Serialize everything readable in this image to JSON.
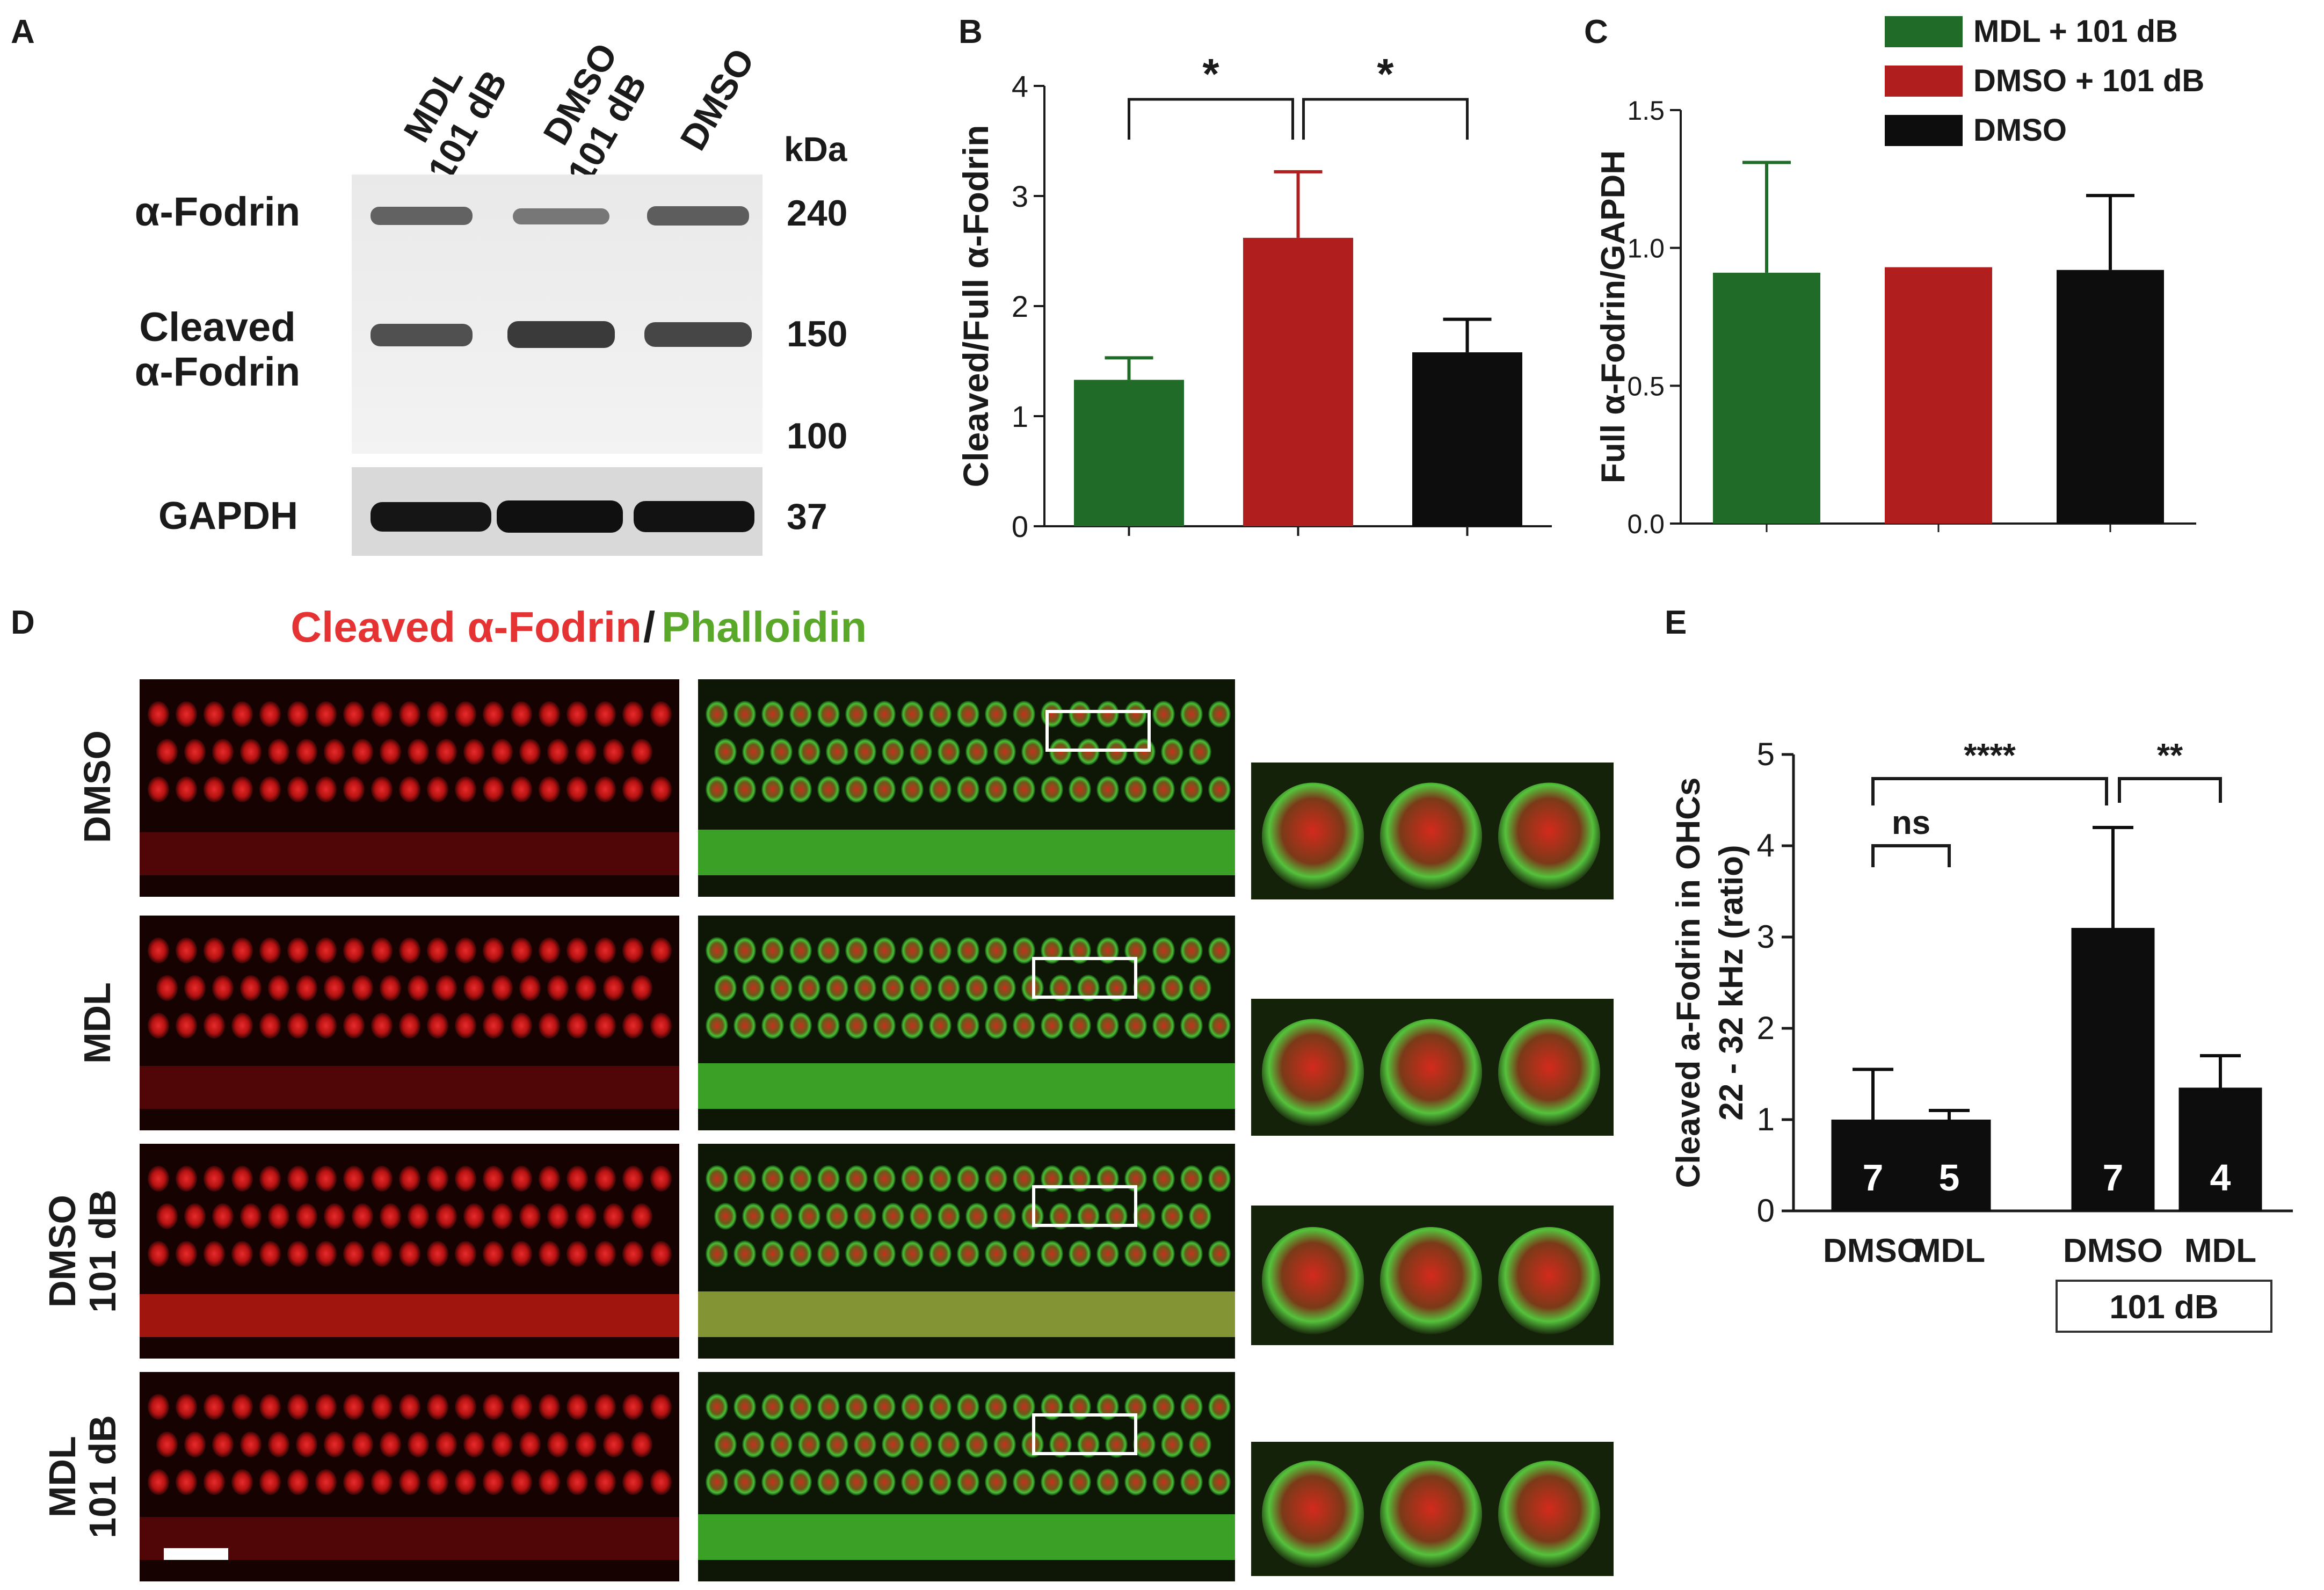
{
  "colors": {
    "green": "#1f6b27",
    "red": "#b01e1e",
    "black": "#0d0d0d",
    "title_red": "#e53232",
    "title_green": "#5aa82a",
    "micro_red": "#c21717",
    "micro_green": "#3fae2a"
  },
  "panels": {
    "A": "A",
    "B": "B",
    "C": "C",
    "D": "D",
    "E": "E"
  },
  "blot": {
    "lanes": [
      {
        "line1": "MDL",
        "line2": "101 dB"
      },
      {
        "line1": "DMSO",
        "line2": "101 dB"
      },
      {
        "line1": "DMSO",
        "line2": ""
      }
    ],
    "kda_label": "kDa",
    "band_labels": {
      "fodrin": "α-Fodrin",
      "cleaved_1": "Cleaved",
      "cleaved_2": "α-Fodrin",
      "gapdh": "GAPDH"
    },
    "markers": [
      "240",
      "150",
      "100",
      "37"
    ]
  },
  "chart_data": [
    {
      "panel": "B",
      "type": "bar",
      "categories": [
        "MDL + 101 dB",
        "DMSO + 101 dB",
        "DMSO"
      ],
      "values": [
        1.33,
        2.62,
        1.58
      ],
      "errors": [
        0.2,
        0.6,
        0.3
      ],
      "ylabel": "Cleaved/Full α-Fodrin",
      "ylim": [
        0,
        4
      ],
      "yticks": [
        "0",
        "1",
        "2",
        "3",
        "4"
      ],
      "significance": [
        {
          "from": 0,
          "to": 1,
          "label": "*"
        },
        {
          "from": 1,
          "to": 2,
          "label": "*"
        }
      ]
    },
    {
      "panel": "C",
      "type": "bar",
      "categories": [
        "MDL + 101 dB",
        "DMSO + 101 dB",
        "DMSO"
      ],
      "values": [
        0.91,
        0.93,
        0.92
      ],
      "errors": [
        0.4,
        0.0,
        0.27
      ],
      "ylabel": "Full α-Fodrin/GAPDH",
      "ylim": [
        0,
        1.5
      ],
      "yticks": [
        "0.0",
        "0.5",
        "1.0",
        "1.5"
      ],
      "legend": [
        "MDL + 101 dB",
        "DMSO + 101 dB",
        "DMSO"
      ],
      "legend_position": "top"
    },
    {
      "panel": "E",
      "type": "bar",
      "categories": [
        "DMSO",
        "MDL",
        "DMSO",
        "MDL"
      ],
      "values": [
        1.0,
        1.0,
        3.1,
        1.35
      ],
      "errors": [
        0.55,
        0.1,
        1.1,
        0.35
      ],
      "n_labels": [
        "7",
        "5",
        "7",
        "4"
      ],
      "ylabel_line1": "Cleaved a-Fodrin in OHCs",
      "ylabel_line2": "22 - 32 kHz (ratio)",
      "ylim": [
        0,
        5
      ],
      "yticks": [
        "0",
        "1",
        "2",
        "3",
        "4",
        "5"
      ],
      "group_label": "101 dB",
      "significance": [
        {
          "from": 0,
          "to": 2,
          "label": "****"
        },
        {
          "from": 0,
          "to": 1,
          "label": "ns"
        },
        {
          "from": 2,
          "to": 3,
          "label": "**"
        }
      ]
    }
  ],
  "panel_d": {
    "title_red": "Cleaved α-Fodrin",
    "title_sep": "/",
    "title_green": "Phalloidin",
    "rows": [
      {
        "line1": "DMSO",
        "line2": ""
      },
      {
        "line1": "MDL",
        "line2": ""
      },
      {
        "line1": "DMSO",
        "line2": "101 dB"
      },
      {
        "line1": "MDL",
        "line2": "101 dB"
      }
    ]
  }
}
